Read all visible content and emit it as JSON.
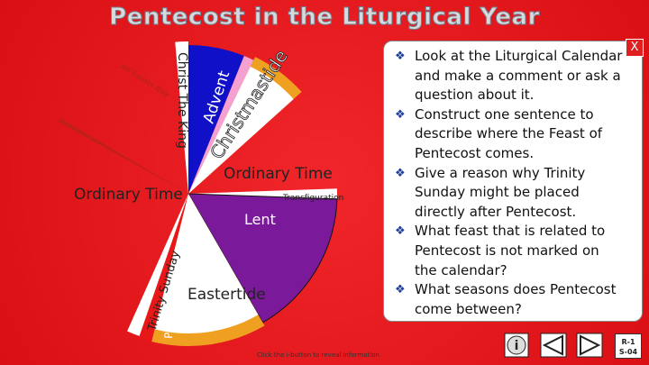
{
  "title": "Pentecost in the Liturgical Year",
  "wheel": {
    "labels": {
      "christ_the_king": "Christ The King",
      "advent": "Advent",
      "christmastide": "Christmastide",
      "ordinary_time_1": "Ordinary Time",
      "transfiguration": "Transfiguration",
      "lent": "Lent",
      "eastertide": "Eastertide",
      "pentecost": "Pentecost",
      "trinity_sunday": "Trinity Sunday",
      "ordinary_time_2": "Ordinary Time",
      "all_saints_day": "All Saints Day"
    }
  },
  "panel": {
    "close": "X",
    "bullets": [
      "Look at the Liturgical Calendar and make a comment or ask a question about it.",
      "Construct one sentence to describe where the Feast of Pentecost comes.",
      "Give a reason why Trinity Sunday might be placed directly after Pentecost.",
      "What feast that is related to Pentecost is not marked on the calendar?",
      "What seasons does Pentecost come between?"
    ]
  },
  "footer": {
    "hint": "Click the i-button to reveal information",
    "info_button": "i",
    "code": [
      "R-1",
      "S-04"
    ]
  }
}
